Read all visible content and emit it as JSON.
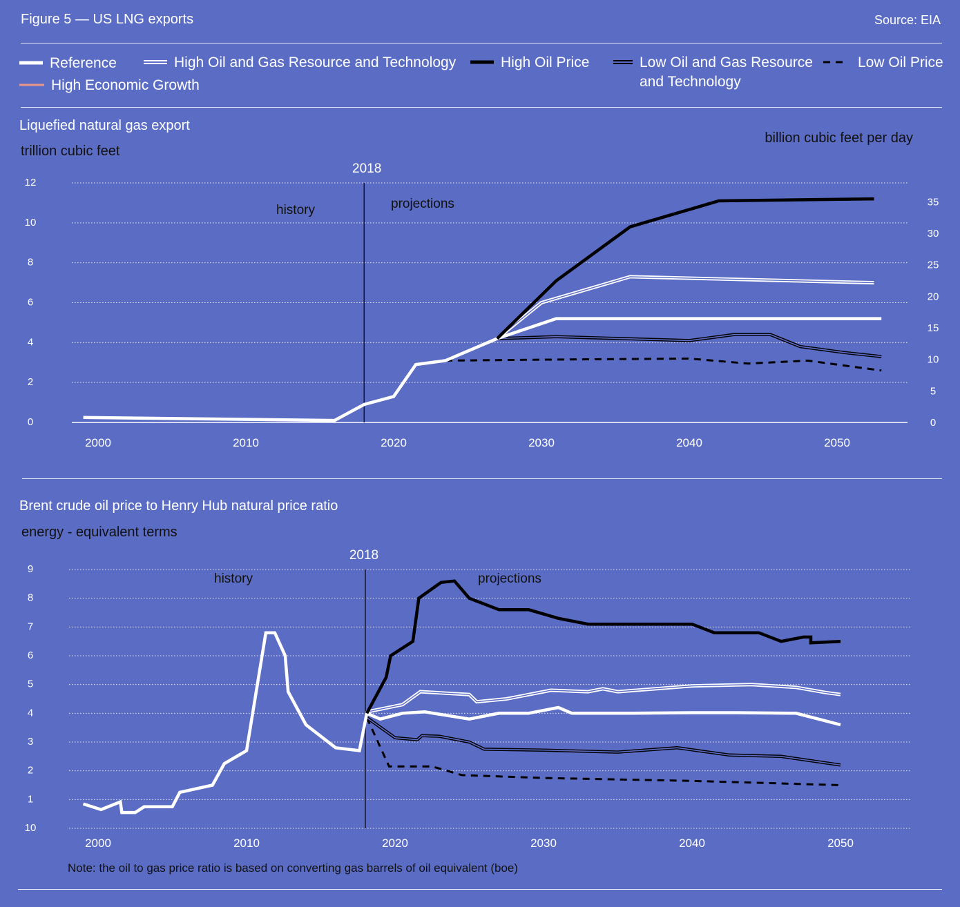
{
  "header": {
    "title": "Figure 5 — US LNG exports",
    "source": "Source: EIA"
  },
  "legend": [
    {
      "key": "reference",
      "label": "Reference"
    },
    {
      "key": "high_res",
      "label": "High Oil and Gas Resource and Technology"
    },
    {
      "key": "high_oil",
      "label": "High Oil Price"
    },
    {
      "key": "low_res",
      "label": "Low Oil and Gas Resource and Technology"
    },
    {
      "key": "low_oil",
      "label": "Low Oil Price"
    },
    {
      "key": "high_econ",
      "label": "High Economic Growth"
    }
  ],
  "colors": {
    "background": "#5b6cc4",
    "reference": "#ffffff",
    "high_oil": "#000000",
    "high_econ": "#e8968a",
    "grid": "#e8ebf8"
  },
  "chart_data": [
    {
      "type": "line",
      "title": "Liquefied natural gas export",
      "ylabel": "trillion cubic feet",
      "y2label": "billion cubic feet per day",
      "marker_label": "2018",
      "history_label": "history",
      "projections_label": "projections",
      "xticks": [
        2000,
        2010,
        2020,
        2030,
        2040,
        2050
      ],
      "yticks": [
        0,
        2,
        4,
        6,
        8,
        10,
        12
      ],
      "y2ticks": [
        0,
        5,
        10,
        15,
        20,
        25,
        30,
        35
      ],
      "ylim": [
        0,
        12
      ],
      "y2lim": [
        0,
        38
      ],
      "xlim": [
        1999,
        2055
      ],
      "grid": true,
      "series": [
        {
          "name": "Reference",
          "key": "reference",
          "x": [
            1999,
            2016,
            2018,
            2020,
            2021.5,
            2023.5,
            2027,
            2031,
            2053
          ],
          "values": [
            0.25,
            0.1,
            0.9,
            1.3,
            2.9,
            3.1,
            4.2,
            5.2,
            5.2
          ]
        },
        {
          "name": "High Oil Price",
          "key": "high_oil",
          "x": [
            2027,
            2031,
            2036,
            2042,
            2052.5
          ],
          "values": [
            4.2,
            7.1,
            9.8,
            11.1,
            11.2
          ]
        },
        {
          "name": "High Oil and Gas Resource and Technology",
          "key": "high_res",
          "x": [
            2027,
            2030,
            2036,
            2052.5
          ],
          "values": [
            4.2,
            6.0,
            7.3,
            7.0
          ]
        },
        {
          "name": "Low Oil and Gas Resource and Technology",
          "key": "low_res",
          "x": [
            2027,
            2031,
            2040,
            2043,
            2045.5,
            2047.5,
            2050.5,
            2053
          ],
          "values": [
            4.2,
            4.3,
            4.1,
            4.4,
            4.4,
            3.8,
            3.5,
            3.3
          ]
        },
        {
          "name": "Low Oil Price",
          "key": "low_oil",
          "x": [
            2023.5,
            2031,
            2040,
            2044,
            2048,
            2053
          ],
          "values": [
            3.1,
            3.15,
            3.2,
            2.95,
            3.1,
            2.6
          ]
        }
      ]
    },
    {
      "type": "line",
      "title": "Brent crude oil price to Henry Hub natural price ratio",
      "ylabel": "energy - equivalent terms",
      "marker_label": "2018",
      "history_label": "history",
      "projections_label": "projections",
      "xticks": [
        2000,
        2010,
        2020,
        2030,
        2040,
        2050
      ],
      "yticks": [
        "10",
        "1",
        "2",
        "3",
        "4",
        "5",
        "6",
        "7",
        "8",
        "9"
      ],
      "ylim": [
        0,
        9
      ],
      "xlim": [
        1999,
        2055
      ],
      "grid": true,
      "note": "Note: the oil to gas price ratio is based on converting gas barrels of oil equivalent (boe)",
      "series": [
        {
          "name": "Reference",
          "key": "reference",
          "x": [
            1999,
            2000.2,
            2001.5,
            2001.6,
            2002.5,
            2003.1,
            2005,
            2005.5,
            2007.7,
            2008.5,
            2010,
            2011.3,
            2011.9,
            2012.6,
            2012.8,
            2014,
            2016,
            2017.6,
            2018.1,
            2019,
            2020.5,
            2022,
            2025,
            2027,
            2029,
            2031,
            2031.9,
            2036,
            2040,
            2043,
            2047,
            2050
          ],
          "values": [
            0.85,
            0.65,
            0.92,
            0.55,
            0.55,
            0.75,
            0.75,
            1.25,
            1.5,
            2.25,
            2.7,
            6.8,
            6.8,
            6.0,
            4.75,
            3.6,
            2.8,
            2.7,
            4.0,
            3.8,
            4.0,
            4.05,
            3.8,
            4.0,
            4.0,
            4.2,
            4.0,
            4.0,
            4.02,
            4.02,
            4.0,
            3.6
          ]
        },
        {
          "name": "High Oil Price",
          "key": "high_oil",
          "x": [
            2018.1,
            2019.4,
            2019.7,
            2021.2,
            2021.6,
            2023.1,
            2024,
            2025,
            2027,
            2029,
            2031,
            2033,
            2040,
            2041.5,
            2044.5,
            2046,
            2047.5,
            2048,
            2048,
            2050
          ],
          "values": [
            4.0,
            5.25,
            6.0,
            6.5,
            8.0,
            8.55,
            8.6,
            8.0,
            7.6,
            7.6,
            7.3,
            7.1,
            7.1,
            6.8,
            6.8,
            6.5,
            6.65,
            6.65,
            6.45,
            6.5
          ]
        },
        {
          "name": "High Oil and Gas Resource and Technology",
          "key": "high_res",
          "x": [
            2018.1,
            2020.5,
            2021.7,
            2025,
            2025.5,
            2027.5,
            2030.5,
            2033,
            2034,
            2035,
            2040,
            2044,
            2047,
            2049,
            2050
          ],
          "values": [
            4.05,
            4.3,
            4.75,
            4.65,
            4.4,
            4.5,
            4.8,
            4.75,
            4.85,
            4.75,
            4.95,
            5.0,
            4.9,
            4.72,
            4.65
          ]
        },
        {
          "name": "Low Oil and Gas Resource and Technology",
          "key": "low_res",
          "x": [
            2018.1,
            2020,
            2021.5,
            2021.8,
            2023,
            2025,
            2026,
            2030,
            2035,
            2039,
            2042.5,
            2046,
            2050
          ],
          "values": [
            3.85,
            3.15,
            3.08,
            3.22,
            3.2,
            3.0,
            2.75,
            2.72,
            2.65,
            2.8,
            2.55,
            2.5,
            2.2
          ]
        },
        {
          "name": "Low Oil Price",
          "key": "low_oil",
          "x": [
            2018.1,
            2019.6,
            2022.5,
            2024.5,
            2030,
            2040,
            2050
          ],
          "values": [
            3.85,
            2.15,
            2.15,
            1.85,
            1.75,
            1.65,
            1.5
          ]
        }
      ]
    }
  ]
}
